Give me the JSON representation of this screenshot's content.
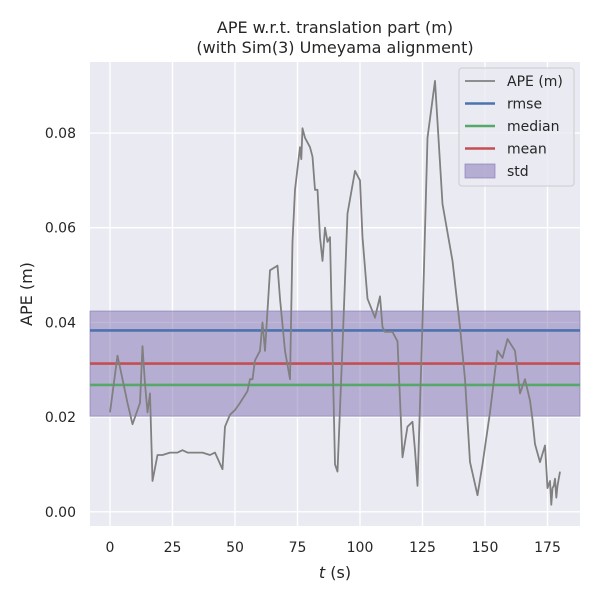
{
  "chart_data": {
    "type": "line",
    "title": "APE w.r.t. translation part (m)",
    "subtitle": "(with Sim(3) Umeyama alignment)",
    "xlabel_var": "t",
    "xlabel_unit": " (s)",
    "ylabel": "APE (m)",
    "xlim": [
      -8,
      188
    ],
    "ylim": [
      -0.003,
      0.095
    ],
    "xticks": [
      0,
      25,
      50,
      75,
      100,
      125,
      150,
      175
    ],
    "yticks": [
      0.0,
      0.02,
      0.04,
      0.06,
      0.08
    ],
    "ytick_labels": [
      "0.00",
      "0.02",
      "0.04",
      "0.06",
      "0.08"
    ],
    "grid": true,
    "legend_position": "top-right",
    "colors": {
      "background": "#eaeaf2",
      "grid": "#ffffff",
      "ape": "#808080",
      "rmse": "#4c72b0",
      "median": "#55a868",
      "mean": "#c44e52",
      "std_fill": "#8172b2"
    },
    "series": [
      {
        "name": "APE (m)",
        "x": [
          0,
          3,
          5,
          7,
          9,
          12,
          13,
          14,
          15,
          16,
          17,
          19,
          21,
          24,
          27,
          29,
          31,
          35,
          37,
          40,
          42,
          45,
          46,
          48,
          50,
          52,
          55,
          56,
          57,
          58,
          60,
          61,
          62,
          64,
          67,
          68,
          70,
          72,
          73,
          74,
          76,
          76.5,
          77,
          78,
          80,
          81,
          82,
          83,
          84,
          85,
          86,
          87,
          88,
          90,
          91,
          93,
          95,
          98,
          100,
          101,
          103,
          106,
          108,
          109,
          110,
          111,
          113,
          115,
          117,
          119,
          121,
          122,
          123,
          125,
          127,
          130,
          133,
          137,
          140,
          142,
          144,
          147,
          149,
          152,
          155,
          157,
          159,
          162,
          164,
          166,
          168,
          169,
          170,
          172,
          174,
          175,
          176,
          176.5,
          177,
          177.5,
          178,
          178.5,
          179,
          180
        ],
        "values": [
          0.021,
          0.033,
          0.028,
          0.023,
          0.0185,
          0.023,
          0.035,
          0.027,
          0.021,
          0.025,
          0.0065,
          0.012,
          0.012,
          0.0125,
          0.0125,
          0.013,
          0.0125,
          0.0125,
          0.0125,
          0.012,
          0.0125,
          0.009,
          0.018,
          0.0205,
          0.0215,
          0.023,
          0.0255,
          0.028,
          0.028,
          0.032,
          0.034,
          0.04,
          0.034,
          0.051,
          0.052,
          0.045,
          0.034,
          0.028,
          0.057,
          0.068,
          0.077,
          0.0745,
          0.081,
          0.079,
          0.077,
          0.075,
          0.068,
          0.068,
          0.058,
          0.053,
          0.06,
          0.057,
          0.058,
          0.01,
          0.0085,
          0.035,
          0.063,
          0.072,
          0.07,
          0.058,
          0.045,
          0.041,
          0.0455,
          0.039,
          0.038,
          0.038,
          0.038,
          0.036,
          0.0115,
          0.018,
          0.019,
          0.013,
          0.0055,
          0.04,
          0.079,
          0.091,
          0.065,
          0.053,
          0.039,
          0.028,
          0.0105,
          0.0035,
          0.01,
          0.021,
          0.034,
          0.0325,
          0.0365,
          0.034,
          0.025,
          0.028,
          0.0235,
          0.0195,
          0.0143,
          0.0105,
          0.014,
          0.005,
          0.0065,
          0.0015,
          0.005,
          0.0055,
          0.007,
          0.003,
          0.0055,
          0.0085
        ]
      },
      {
        "name": "rmse",
        "value": 0.0383
      },
      {
        "name": "median",
        "value": 0.0268
      },
      {
        "name": "mean",
        "value": 0.0313
      },
      {
        "name": "std",
        "value": 0.0111
      }
    ]
  }
}
